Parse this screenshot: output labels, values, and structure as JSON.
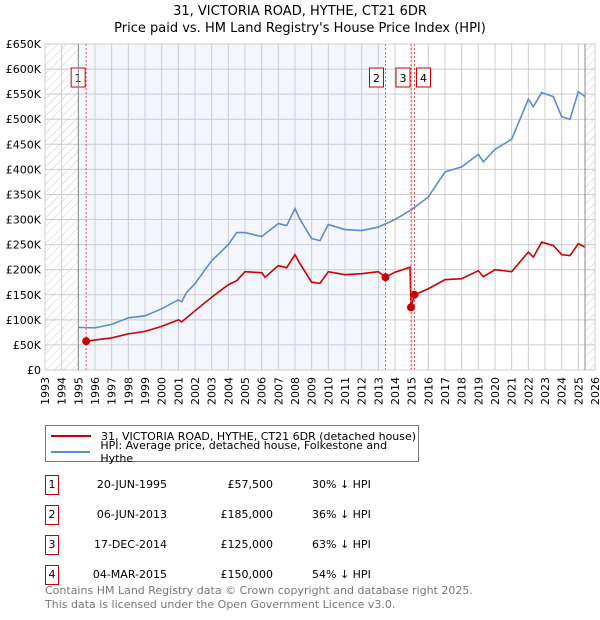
{
  "title": "31, VICTORIA ROAD, HYTHE, CT21 6DR",
  "subtitle": "Price paid vs. HM Land Registry's House Price Index (HPI)",
  "chart_data": {
    "type": "line",
    "xlim": [
      1993,
      2026
    ],
    "ylim": [
      0,
      650000
    ],
    "x_ticks": [
      "1993",
      "1994",
      "1995",
      "1996",
      "1997",
      "1998",
      "1999",
      "2000",
      "2001",
      "2002",
      "2003",
      "2004",
      "2005",
      "2006",
      "2007",
      "2008",
      "2009",
      "2010",
      "2011",
      "2012",
      "2013",
      "2014",
      "2015",
      "2016",
      "2017",
      "2018",
      "2019",
      "2020",
      "2021",
      "2022",
      "2023",
      "2024",
      "2025",
      "2026"
    ],
    "y_ticks": [
      "£0",
      "£50K",
      "£100K",
      "£150K",
      "£200K",
      "£250K",
      "£300K",
      "£350K",
      "£400K",
      "£450K",
      "£500K",
      "£550K",
      "£600K",
      "£650K"
    ],
    "grid": true,
    "series": [
      {
        "name": "31, VICTORIA ROAD, HYTHE, CT21 6DR (detached house)",
        "color": "#cc0000",
        "points": [
          [
            1995.47,
            57.5
          ],
          [
            1996,
            60
          ],
          [
            1997,
            64
          ],
          [
            1998,
            72
          ],
          [
            1999,
            77
          ],
          [
            2000,
            87
          ],
          [
            2001,
            100
          ],
          [
            2001.2,
            96
          ],
          [
            2002,
            118
          ],
          [
            2003,
            145
          ],
          [
            2004,
            170
          ],
          [
            2004.5,
            178
          ],
          [
            2005,
            196
          ],
          [
            2006,
            194
          ],
          [
            2006.2,
            185
          ],
          [
            2007,
            208
          ],
          [
            2007.5,
            204
          ],
          [
            2008,
            230
          ],
          [
            2008.3,
            212
          ],
          [
            2009,
            175
          ],
          [
            2009.5,
            173
          ],
          [
            2010,
            196
          ],
          [
            2011,
            190
          ],
          [
            2012,
            192
          ],
          [
            2013,
            196
          ],
          [
            2013.43,
            185
          ],
          [
            2014,
            195
          ],
          [
            2014.9,
            205
          ],
          [
            2014.96,
            125
          ],
          [
            2015.17,
            150
          ],
          [
            2016,
            162
          ],
          [
            2017,
            180
          ],
          [
            2018,
            182
          ],
          [
            2019,
            198
          ],
          [
            2019.3,
            186
          ],
          [
            2020,
            200
          ],
          [
            2021,
            196
          ],
          [
            2022,
            235
          ],
          [
            2022.3,
            225
          ],
          [
            2022.8,
            255
          ],
          [
            2023.5,
            248
          ],
          [
            2024,
            230
          ],
          [
            2024.5,
            228
          ],
          [
            2025,
            252
          ],
          [
            2025.4,
            245
          ]
        ]
      },
      {
        "name": "HPI: Average price, detached house, Folkestone and Hythe",
        "color": "#5b8bd0",
        "points": [
          [
            1995,
            85
          ],
          [
            1996,
            84
          ],
          [
            1997,
            91
          ],
          [
            1998,
            104
          ],
          [
            1999,
            108
          ],
          [
            2000,
            122
          ],
          [
            2001,
            140
          ],
          [
            2001.2,
            136
          ],
          [
            2001.5,
            155
          ],
          [
            2002,
            172
          ],
          [
            2003,
            218
          ],
          [
            2004,
            250
          ],
          [
            2004.5,
            274
          ],
          [
            2005,
            274
          ],
          [
            2006,
            266
          ],
          [
            2007,
            292
          ],
          [
            2007.5,
            288
          ],
          [
            2008,
            322
          ],
          [
            2008.3,
            300
          ],
          [
            2009,
            262
          ],
          [
            2009.5,
            258
          ],
          [
            2010,
            290
          ],
          [
            2011,
            280
          ],
          [
            2012,
            278
          ],
          [
            2013,
            285
          ],
          [
            2014,
            300
          ],
          [
            2015,
            320
          ],
          [
            2016,
            345
          ],
          [
            2017,
            395
          ],
          [
            2018,
            405
          ],
          [
            2019,
            430
          ],
          [
            2019.3,
            415
          ],
          [
            2020,
            440
          ],
          [
            2021,
            460
          ],
          [
            2022,
            540
          ],
          [
            2022.3,
            525
          ],
          [
            2022.8,
            553
          ],
          [
            2023.5,
            545
          ],
          [
            2024,
            505
          ],
          [
            2024.5,
            500
          ],
          [
            2025,
            555
          ],
          [
            2025.4,
            545
          ]
        ]
      }
    ],
    "sales": [
      {
        "label": "1",
        "x": 1995.47,
        "value": 57.5
      },
      {
        "label": "2",
        "x": 2013.43,
        "value": 185
      },
      {
        "label": "3",
        "x": 2014.96,
        "value": 125
      },
      {
        "label": "4",
        "x": 2015.17,
        "value": 150
      }
    ],
    "shaded_range": [
      1995,
      2013.43
    ],
    "hatched_ranges": [
      [
        1993,
        1995
      ],
      [
        2025.4,
        2026
      ]
    ]
  },
  "legend": [
    {
      "label": "31, VICTORIA ROAD, HYTHE, CT21 6DR (detached house)",
      "color": "#cc0000"
    },
    {
      "label": "HPI: Average price, detached house, Folkestone and Hythe",
      "color": "#5b8bd0"
    }
  ],
  "table": [
    {
      "num": "1",
      "date": "20-JUN-1995",
      "price": "£57,500",
      "hpi": "30% ↓ HPI"
    },
    {
      "num": "2",
      "date": "06-JUN-2013",
      "price": "£185,000",
      "hpi": "36% ↓ HPI"
    },
    {
      "num": "3",
      "date": "17-DEC-2014",
      "price": "£125,000",
      "hpi": "63% ↓ HPI"
    },
    {
      "num": "4",
      "date": "04-MAR-2015",
      "price": "£150,000",
      "hpi": "54% ↓ HPI"
    }
  ],
  "footer": [
    "Contains HM Land Registry data © Crown copyright and database right 2025.",
    "This data is licensed under the Open Government Licence v3.0."
  ]
}
